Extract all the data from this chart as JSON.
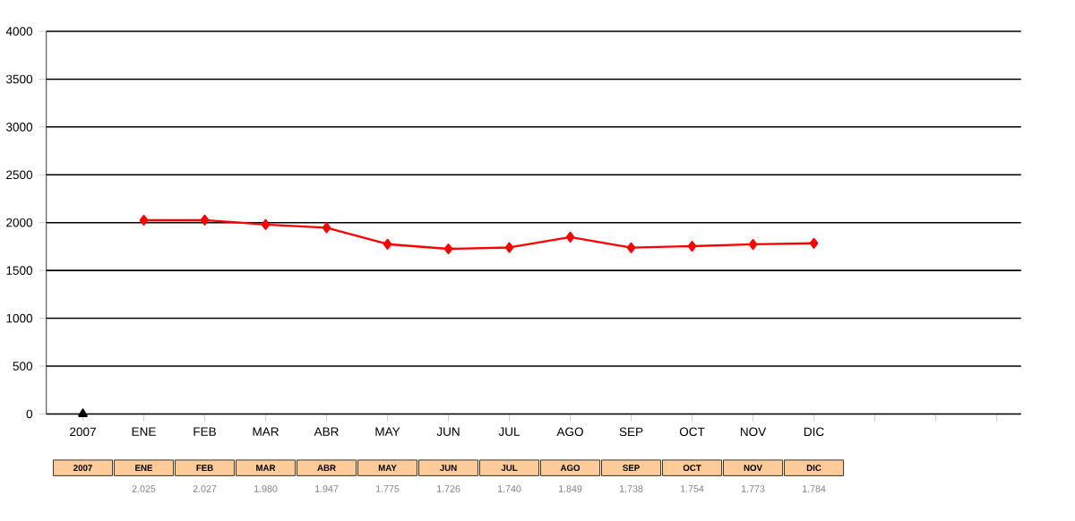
{
  "chart_data": {
    "type": "line",
    "categories": [
      "2007",
      "ENE",
      "FEB",
      "MAR",
      "ABR",
      "MAY",
      "JUN",
      "JUL",
      "AGO",
      "SEP",
      "OCT",
      "NOV",
      "DIC",
      null,
      null,
      null
    ],
    "series": [
      {
        "color": "#000000",
        "marker": "triangle",
        "values": [
          0,
          null,
          null,
          null,
          null,
          null,
          null,
          null,
          null,
          null,
          null,
          null,
          null,
          null,
          null,
          null
        ]
      },
      {
        "color": "#ff0000",
        "marker": "diamond",
        "line_style": "solid",
        "values": [
          null,
          2025,
          2027,
          1980,
          1947,
          1775,
          1726,
          1740,
          1849,
          1738,
          1754,
          1773,
          1784,
          null,
          null,
          null
        ],
        "value_labels": [
          null,
          "2.025",
          "2.027",
          "1.980",
          "1.947",
          "1.775",
          "1.726",
          "1.740",
          "1.849",
          "1.738",
          "1.754",
          "1.773",
          "1.784",
          null,
          null,
          null
        ]
      }
    ],
    "ylim": [
      0,
      4000
    ],
    "yticks": [
      0,
      500,
      1000,
      1500,
      2000,
      2500,
      3000,
      3500,
      4000
    ],
    "grid": "y"
  }
}
